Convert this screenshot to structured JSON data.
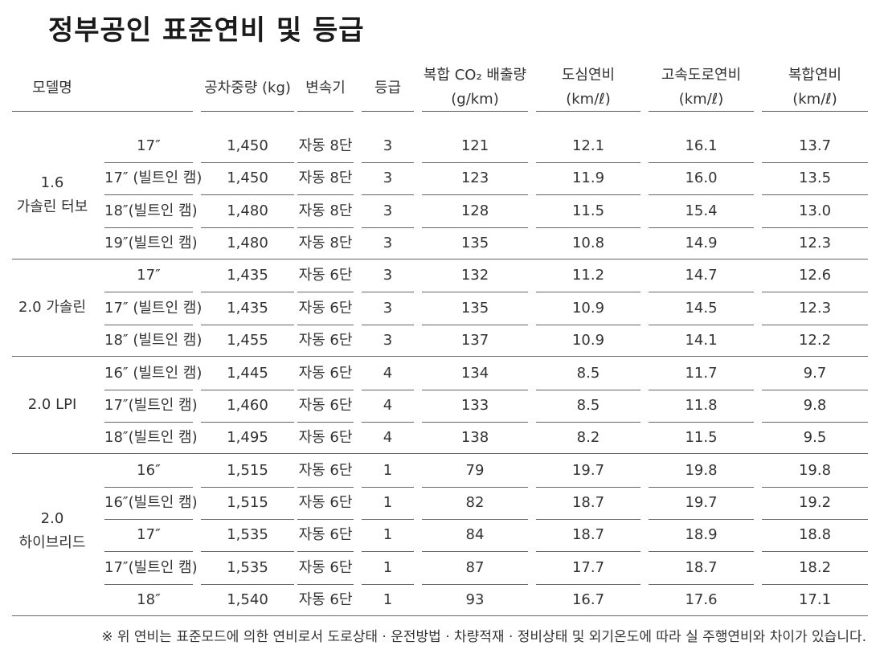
{
  "title": "정부공인 표준연비 및 등급",
  "headers": {
    "model": "모델명",
    "weight": "공차중량 (kg)",
    "transmission": "변속기",
    "grade": "등급",
    "co2_line1": "복합 CO₂ 배출량",
    "co2_line2": "(g/km)",
    "city_line1": "도심연비",
    "city_line2": "(km/ℓ)",
    "highway_line1": "고속도로연비",
    "highway_line2": "(km/ℓ)",
    "combined_line1": "복합연비",
    "combined_line2": "(km/ℓ)"
  },
  "groups": [
    {
      "line1": "1.6",
      "line2": "가솔린 터보"
    },
    {
      "line1": "2.0 가솔린",
      "line2": ""
    },
    {
      "line1": "2.0 LPI",
      "line2": ""
    },
    {
      "line1": "2.0",
      "line2": "하이브리드"
    }
  ],
  "rows": [
    {
      "wheel": "17″",
      "weight": "1,450",
      "trans": "자동 8단",
      "grade": "3",
      "co2": "121",
      "city": "12.1",
      "highway": "16.1",
      "combined": "13.7"
    },
    {
      "wheel": "17″ (빌트인 캠)",
      "weight": "1,450",
      "trans": "자동 8단",
      "grade": "3",
      "co2": "123",
      "city": "11.9",
      "highway": "16.0",
      "combined": "13.5"
    },
    {
      "wheel": "18″(빌트인 캠)",
      "weight": "1,480",
      "trans": "자동 8단",
      "grade": "3",
      "co2": "128",
      "city": "11.5",
      "highway": "15.4",
      "combined": "13.0"
    },
    {
      "wheel": "19″(빌트인 캠)",
      "weight": "1,480",
      "trans": "자동 8단",
      "grade": "3",
      "co2": "135",
      "city": "10.8",
      "highway": "14.9",
      "combined": "12.3"
    },
    {
      "wheel": "17″",
      "weight": "1,435",
      "trans": "자동 6단",
      "grade": "3",
      "co2": "132",
      "city": "11.2",
      "highway": "14.7",
      "combined": "12.6"
    },
    {
      "wheel": "17″ (빌트인 캠)",
      "weight": "1,435",
      "trans": "자동 6단",
      "grade": "3",
      "co2": "135",
      "city": "10.9",
      "highway": "14.5",
      "combined": "12.3"
    },
    {
      "wheel": "18″ (빌트인 캠)",
      "weight": "1,455",
      "trans": "자동 6단",
      "grade": "3",
      "co2": "137",
      "city": "10.9",
      "highway": "14.1",
      "combined": "12.2"
    },
    {
      "wheel": "16″ (빌트인 캠)",
      "weight": "1,445",
      "trans": "자동 6단",
      "grade": "4",
      "co2": "134",
      "city": "8.5",
      "highway": "11.7",
      "combined": "9.7"
    },
    {
      "wheel": "17″(빌트인 캠)",
      "weight": "1,460",
      "trans": "자동 6단",
      "grade": "4",
      "co2": "133",
      "city": "8.5",
      "highway": "11.8",
      "combined": "9.8"
    },
    {
      "wheel": "18″(빌트인 캠)",
      "weight": "1,495",
      "trans": "자동 6단",
      "grade": "4",
      "co2": "138",
      "city": "8.2",
      "highway": "11.5",
      "combined": "9.5"
    },
    {
      "wheel": "16″",
      "weight": "1,515",
      "trans": "자동 6단",
      "grade": "1",
      "co2": "79",
      "city": "19.7",
      "highway": "19.8",
      "combined": "19.8"
    },
    {
      "wheel": "16″(빌트인 캠)",
      "weight": "1,515",
      "trans": "자동 6단",
      "grade": "1",
      "co2": "82",
      "city": "18.7",
      "highway": "19.7",
      "combined": "19.2"
    },
    {
      "wheel": "17″",
      "weight": "1,535",
      "trans": "자동 6단",
      "grade": "1",
      "co2": "84",
      "city": "18.7",
      "highway": "18.9",
      "combined": "18.8"
    },
    {
      "wheel": "17″(빌트인 캠)",
      "weight": "1,535",
      "trans": "자동 6단",
      "grade": "1",
      "co2": "87",
      "city": "17.7",
      "highway": "18.7",
      "combined": "18.2"
    },
    {
      "wheel": "18″",
      "weight": "1,540",
      "trans": "자동 6단",
      "grade": "1",
      "co2": "93",
      "city": "16.7",
      "highway": "17.6",
      "combined": "17.1"
    }
  ],
  "footnote": "※ 위 연비는 표준모드에 의한 연비로서 도로상태 · 운전방법 · 차량적재 · 정비상태 및 외기온도에 따라 실 주행연비와 차이가 있습니다."
}
